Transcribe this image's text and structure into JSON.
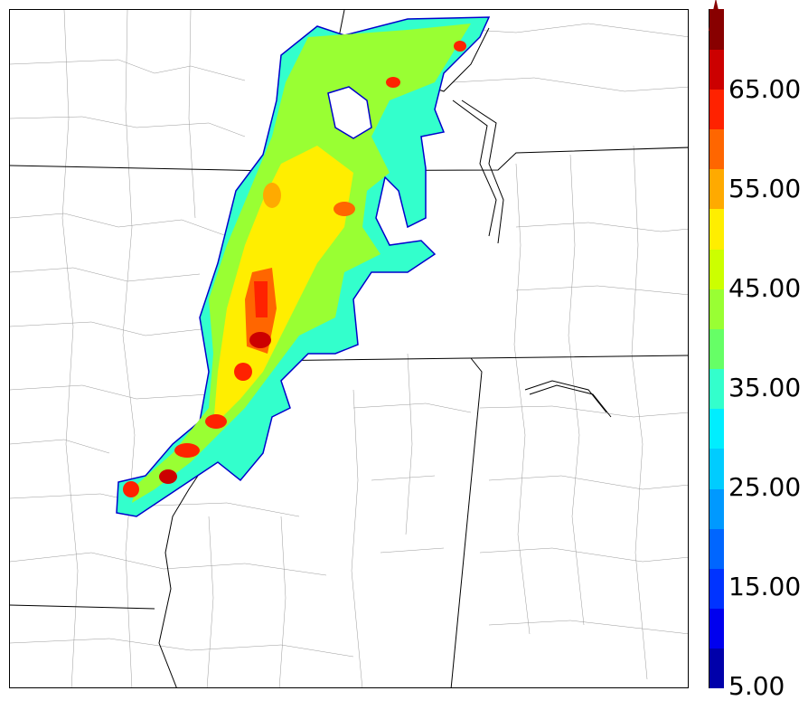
{
  "colorbar": {
    "labels": [
      "65.00",
      "55.00",
      "45.00",
      "35.00",
      "25.00",
      "15.00",
      "5.00"
    ],
    "colors": [
      "#0000aa",
      "#0000ee",
      "#0033ff",
      "#0066ff",
      "#0099ff",
      "#00ccff",
      "#00eeff",
      "#33ffcc",
      "#66ff66",
      "#99ff33",
      "#ccff00",
      "#ffee00",
      "#ffaa00",
      "#ff6600",
      "#ff2200",
      "#cc0000",
      "#880000"
    ],
    "extend_color": "#880000"
  },
  "map": {
    "background": "#ffffff",
    "boundary_color": "#000000",
    "county_color": "#888888",
    "field_colors": {
      "low": "#33ffcc",
      "mid": "#99ff33",
      "high": "#ffee00",
      "peak": "#ff2200",
      "core": "#cc0000"
    }
  }
}
